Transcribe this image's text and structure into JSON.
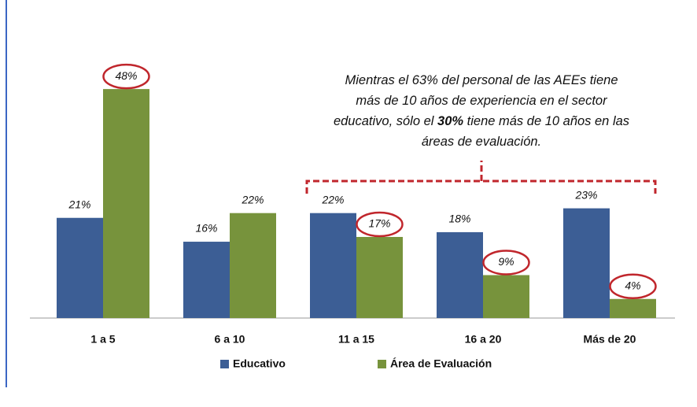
{
  "chart_data": {
    "type": "bar",
    "categories": [
      "1 a 5",
      "6 a 10",
      "11 a 15",
      "16 a 20",
      "Más de 20"
    ],
    "series": [
      {
        "name": "Educativo",
        "color": "#3c5e95",
        "values": [
          21,
          16,
          22,
          18,
          23
        ],
        "value_labels": [
          "21%",
          "16%",
          "22%",
          "18%",
          "23%"
        ]
      },
      {
        "name": "Área de Evaluación",
        "color": "#77933c",
        "values": [
          48,
          22,
          17,
          9,
          4
        ],
        "value_labels": [
          "48%",
          "22%",
          "17%",
          "9%",
          "4%"
        ],
        "highlighted": [
          0,
          2,
          3,
          4
        ]
      }
    ],
    "annotation": [
      [
        {
          "text": "Mientras el 63% del personal de las AEEs tiene"
        }
      ],
      [
        {
          "text": "más de 10 años de experiencia en el sector"
        }
      ],
      [
        {
          "text": "educativo, sólo el "
        },
        {
          "text": "30%",
          "bold": true
        },
        {
          "text": " tiene más de 10 años en las"
        }
      ],
      [
        {
          "text": "áreas de evaluación."
        }
      ]
    ]
  }
}
